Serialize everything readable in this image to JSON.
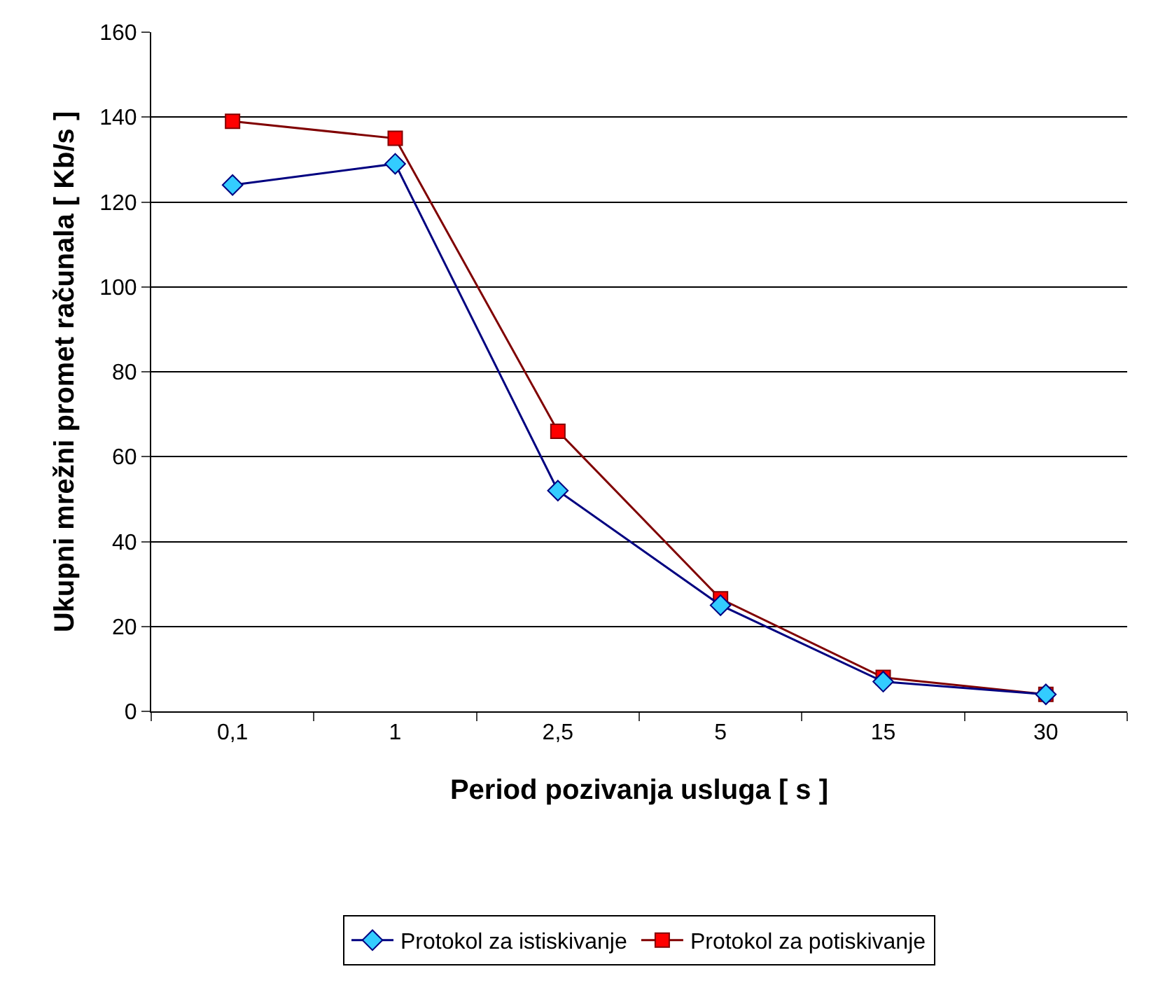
{
  "chart_data": {
    "type": "line",
    "xlabel": "Period pozivanja usluga [ s ]",
    "ylabel": "Ukupni mrežni promet računala [ Kb/s ]",
    "categories": [
      "0,1",
      "1",
      "2,5",
      "5",
      "15",
      "30"
    ],
    "series": [
      {
        "name": "Protokol za istiskivanje",
        "color": "#000080",
        "colors": [
          "#33ccff",
          "#33ccff",
          "#33ccff",
          "#33ccff",
          "#33ccff",
          "#33ccff"
        ],
        "marker": "diamond",
        "values": [
          124,
          129,
          52,
          25,
          7,
          4
        ]
      },
      {
        "name": "Protokol za potiskivanje",
        "color": "#800000",
        "colors": [
          "#ff0000",
          "#ff0000",
          "#ff0000",
          "#ff0000",
          "#ff0000",
          "#ff0000"
        ],
        "marker": "square",
        "values": [
          139,
          135,
          66,
          26.5,
          8,
          4
        ]
      }
    ],
    "ylim": [
      0,
      160
    ],
    "yticks": [
      0,
      20,
      40,
      60,
      80,
      100,
      120,
      140,
      160
    ],
    "grid": "y",
    "legend": "bottom",
    "line_style": "solid"
  }
}
